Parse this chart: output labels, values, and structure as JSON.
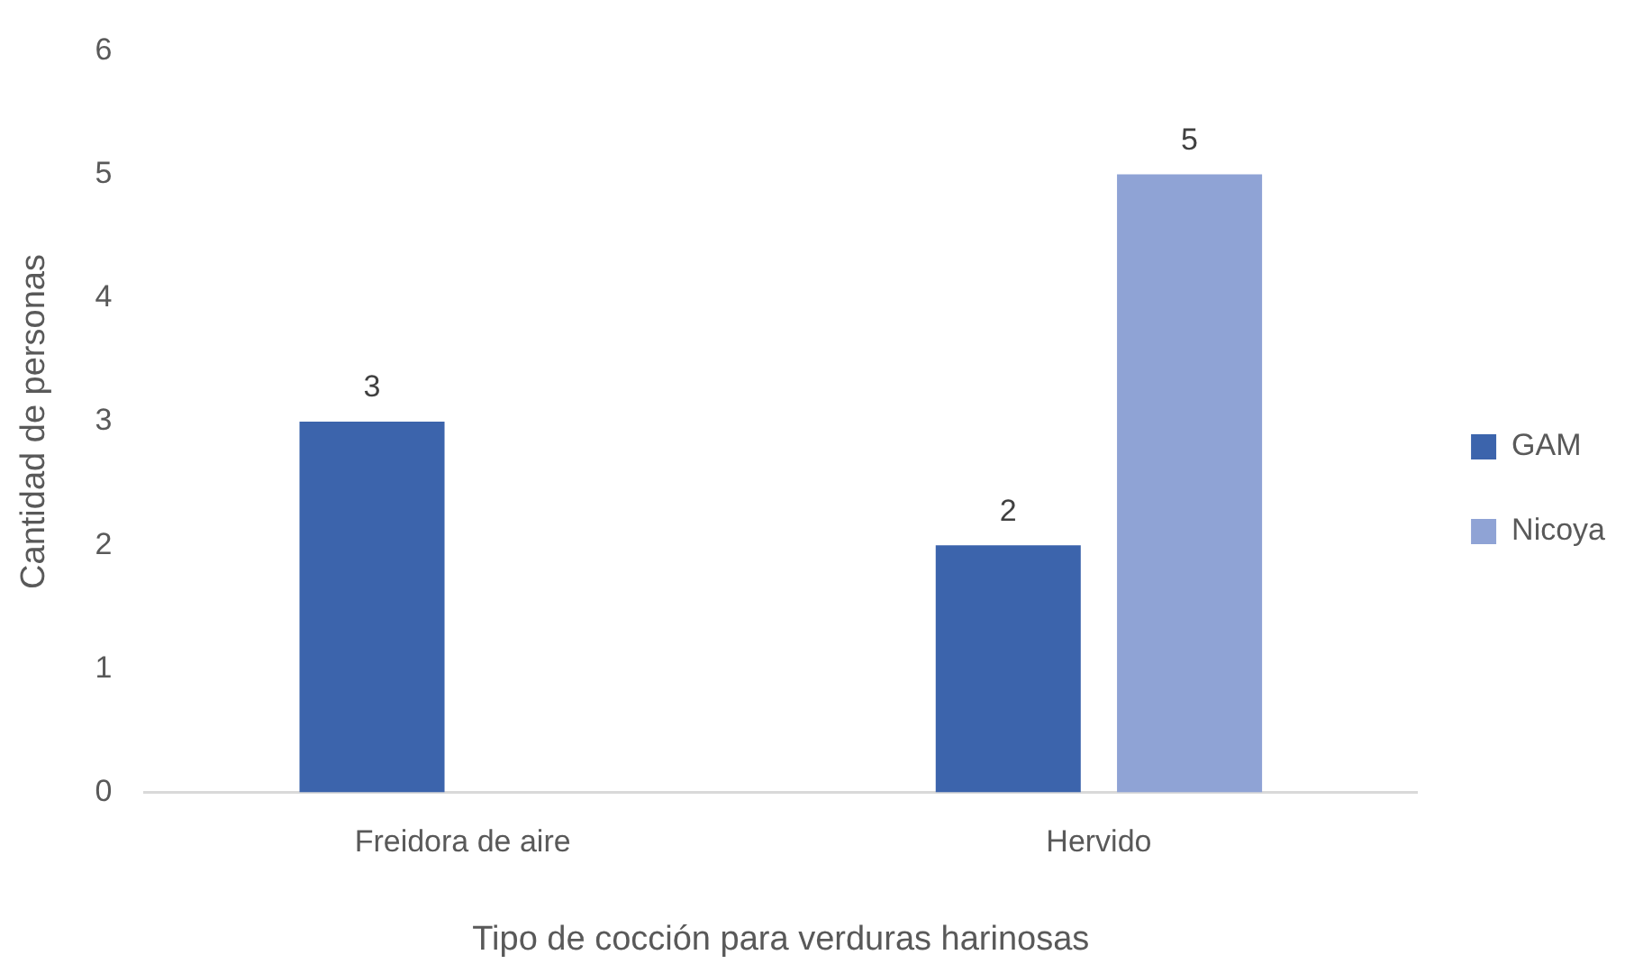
{
  "chart_data": {
    "type": "bar",
    "xlabel": "Tipo de cocción para verduras harinosas",
    "ylabel": "Cantidad de personas",
    "categories": [
      "Freidora de aire",
      "Hervido"
    ],
    "series": [
      {
        "name": "GAM",
        "color": "#3c64ac",
        "values": [
          3,
          2
        ]
      },
      {
        "name": "Nicoya",
        "color": "#8fa3d5",
        "values": [
          null,
          5
        ]
      }
    ],
    "ylim": [
      0,
      6
    ],
    "yticks": [
      0,
      1,
      2,
      3,
      4,
      5,
      6
    ],
    "grid": false,
    "legend": "right",
    "data_labels": true
  }
}
